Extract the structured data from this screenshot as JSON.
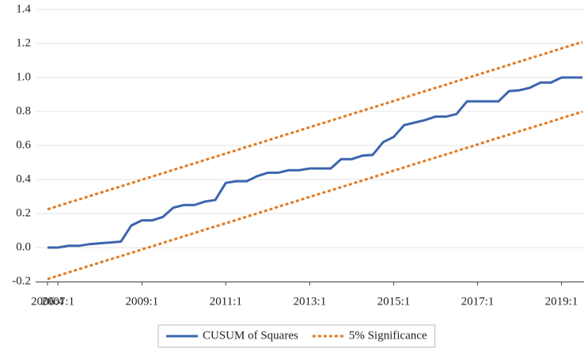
{
  "chart_data": {
    "type": "line",
    "categories": [
      "2006:4",
      "2007:1",
      null,
      null,
      null,
      null,
      null,
      null,
      null,
      "2009:1",
      null,
      null,
      null,
      null,
      null,
      null,
      null,
      "2011:1",
      null,
      null,
      null,
      null,
      null,
      null,
      null,
      "2013:1",
      null,
      null,
      null,
      null,
      null,
      null,
      null,
      "2015:1",
      null,
      null,
      null,
      null,
      null,
      null,
      null,
      "2017:1",
      null,
      null,
      null,
      null,
      null,
      null,
      null,
      "2019:1",
      null,
      null
    ],
    "series": [
      {
        "name": "CUSUM of Squares",
        "color": "#3c65ad",
        "dashed": false,
        "values": [
          0.0,
          0.0,
          0.01,
          0.01,
          0.02,
          0.025,
          0.03,
          0.035,
          0.13,
          0.16,
          0.16,
          0.18,
          0.235,
          0.25,
          0.25,
          0.27,
          0.28,
          0.38,
          0.39,
          0.39,
          0.42,
          0.44,
          0.44,
          0.455,
          0.455,
          0.465,
          0.465,
          0.465,
          0.52,
          0.52,
          0.54,
          0.545,
          0.62,
          0.65,
          0.72,
          0.735,
          0.75,
          0.77,
          0.77,
          0.785,
          0.86,
          0.86,
          0.86,
          0.86,
          0.92,
          0.925,
          0.94,
          0.97,
          0.97,
          1.0,
          1.0,
          1.0
        ]
      },
      {
        "name": "5% Significance",
        "color": "#e07b24",
        "dashed": true,
        "values": [
          0.225,
          0.244,
          0.264,
          0.283,
          0.302,
          0.322,
          0.341,
          0.36,
          0.379,
          0.399,
          0.418,
          0.437,
          0.457,
          0.476,
          0.495,
          0.515,
          0.534,
          0.553,
          0.572,
          0.592,
          0.611,
          0.63,
          0.65,
          0.669,
          0.688,
          0.708,
          0.727,
          0.746,
          0.765,
          0.785,
          0.804,
          0.823,
          0.843,
          0.862,
          0.881,
          0.901,
          0.92,
          0.939,
          0.958,
          0.978,
          0.997,
          1.016,
          1.036,
          1.055,
          1.074,
          1.094,
          1.113,
          1.132,
          1.151,
          1.171,
          1.19,
          1.209
        ]
      },
      {
        "color": "#e07b24",
        "dashed": true,
        "values": [
          -0.185,
          -0.166,
          -0.146,
          -0.127,
          -0.108,
          -0.088,
          -0.069,
          -0.05,
          -0.031,
          -0.011,
          0.008,
          0.027,
          0.047,
          0.066,
          0.085,
          0.105,
          0.124,
          0.143,
          0.162,
          0.182,
          0.201,
          0.22,
          0.24,
          0.259,
          0.278,
          0.298,
          0.317,
          0.336,
          0.355,
          0.375,
          0.394,
          0.413,
          0.433,
          0.452,
          0.471,
          0.491,
          0.51,
          0.529,
          0.548,
          0.568,
          0.587,
          0.606,
          0.626,
          0.645,
          0.664,
          0.684,
          0.703,
          0.722,
          0.741,
          0.761,
          0.78,
          0.799
        ]
      }
    ],
    "ylim": [
      -0.2,
      1.4
    ],
    "yticks": [
      -0.2,
      {
        "value": 0,
        "label": "0.0"
      },
      0.2,
      0.4,
      0.6,
      0.8,
      {
        "value": 1,
        "label": "1.0"
      },
      1.2,
      1.4
    ],
    "grid": true
  }
}
